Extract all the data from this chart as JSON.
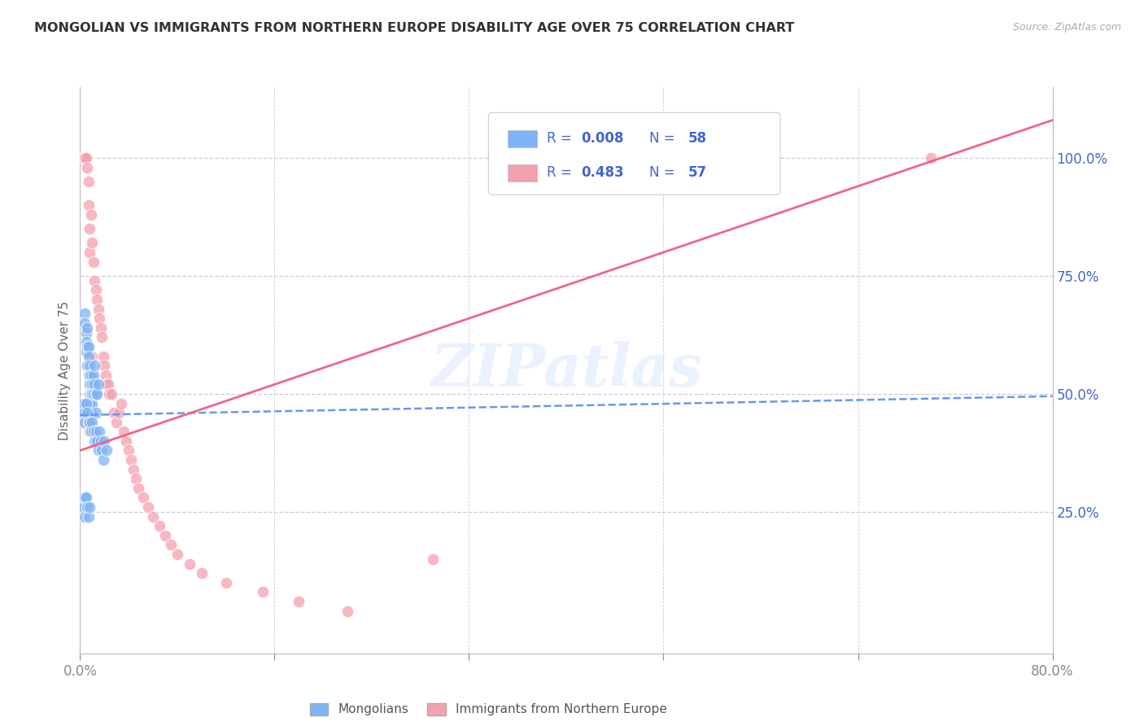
{
  "title": "MONGOLIAN VS IMMIGRANTS FROM NORTHERN EUROPE DISABILITY AGE OVER 75 CORRELATION CHART",
  "source": "Source: ZipAtlas.com",
  "ylabel": "Disability Age Over 75",
  "xlim": [
    0.0,
    0.8
  ],
  "ylim": [
    -0.05,
    1.15
  ],
  "xtick_positions": [
    0.0,
    0.16,
    0.32,
    0.48,
    0.64,
    0.8
  ],
  "xticklabels": [
    "0.0%",
    "",
    "",
    "",
    "",
    "80.0%"
  ],
  "right_yticks": [
    0.0,
    0.25,
    0.5,
    0.75,
    1.0
  ],
  "right_yticklabels": [
    "",
    "25.0%",
    "50.0%",
    "75.0%",
    "100.0%"
  ],
  "mongolian_R": "0.008",
  "mongolian_N": "58",
  "northern_europe_R": "0.483",
  "northern_europe_N": "57",
  "mongolian_color": "#7fb3f5",
  "northern_europe_color": "#f5a0b0",
  "mongolian_line_color": "#6699ee",
  "northern_europe_line_color": "#ee6688",
  "watermark": "ZIPatlas",
  "background_color": "#ffffff",
  "grid_color": "#ccccdd",
  "mongolian_x": [
    0.004,
    0.004,
    0.005,
    0.005,
    0.005,
    0.006,
    0.006,
    0.006,
    0.007,
    0.007,
    0.007,
    0.008,
    0.008,
    0.008,
    0.008,
    0.008,
    0.009,
    0.009,
    0.009,
    0.01,
    0.01,
    0.01,
    0.011,
    0.011,
    0.012,
    0.012,
    0.013,
    0.013,
    0.014,
    0.015,
    0.003,
    0.003,
    0.004,
    0.005,
    0.006,
    0.007,
    0.008,
    0.009,
    0.01,
    0.011,
    0.012,
    0.013,
    0.014,
    0.015,
    0.016,
    0.017,
    0.018,
    0.019,
    0.02,
    0.022,
    0.003,
    0.003,
    0.004,
    0.004,
    0.005,
    0.006,
    0.007,
    0.008
  ],
  "mongolian_y": [
    0.67,
    0.65,
    0.63,
    0.61,
    0.59,
    0.64,
    0.6,
    0.56,
    0.6,
    0.58,
    0.54,
    0.56,
    0.54,
    0.52,
    0.5,
    0.48,
    0.54,
    0.5,
    0.46,
    0.52,
    0.5,
    0.48,
    0.54,
    0.5,
    0.56,
    0.52,
    0.5,
    0.46,
    0.5,
    0.52,
    0.48,
    0.46,
    0.44,
    0.48,
    0.46,
    0.44,
    0.44,
    0.42,
    0.44,
    0.42,
    0.4,
    0.42,
    0.4,
    0.38,
    0.42,
    0.4,
    0.38,
    0.36,
    0.4,
    0.38,
    0.28,
    0.26,
    0.28,
    0.24,
    0.28,
    0.26,
    0.24,
    0.26
  ],
  "northern_europe_x": [
    0.003,
    0.004,
    0.005,
    0.006,
    0.007,
    0.007,
    0.008,
    0.008,
    0.009,
    0.01,
    0.01,
    0.011,
    0.012,
    0.013,
    0.014,
    0.015,
    0.016,
    0.017,
    0.018,
    0.019,
    0.02,
    0.021,
    0.022,
    0.023,
    0.024,
    0.026,
    0.028,
    0.03,
    0.032,
    0.034,
    0.036,
    0.038,
    0.04,
    0.042,
    0.044,
    0.046,
    0.048,
    0.052,
    0.056,
    0.06,
    0.065,
    0.07,
    0.075,
    0.08,
    0.09,
    0.1,
    0.12,
    0.15,
    0.18,
    0.22,
    0.004,
    0.005,
    0.006,
    0.007,
    0.008,
    0.29,
    0.7
  ],
  "northern_europe_y": [
    1.0,
    1.0,
    1.0,
    0.98,
    0.95,
    0.9,
    0.85,
    0.8,
    0.88,
    0.82,
    0.58,
    0.78,
    0.74,
    0.72,
    0.7,
    0.68,
    0.66,
    0.64,
    0.62,
    0.58,
    0.56,
    0.54,
    0.52,
    0.52,
    0.5,
    0.5,
    0.46,
    0.44,
    0.46,
    0.48,
    0.42,
    0.4,
    0.38,
    0.36,
    0.34,
    0.32,
    0.3,
    0.28,
    0.26,
    0.24,
    0.22,
    0.2,
    0.18,
    0.16,
    0.14,
    0.12,
    0.1,
    0.08,
    0.06,
    0.04,
    0.44,
    0.48,
    0.46,
    0.44,
    0.42,
    0.15,
    1.0
  ],
  "mongo_line_x0": 0.0,
  "mongo_line_x1": 0.8,
  "mongo_line_y0": 0.455,
  "mongo_line_y1": 0.495,
  "ne_line_x0": 0.0,
  "ne_line_x1": 0.8,
  "ne_line_y0": 0.38,
  "ne_line_y1": 1.08
}
